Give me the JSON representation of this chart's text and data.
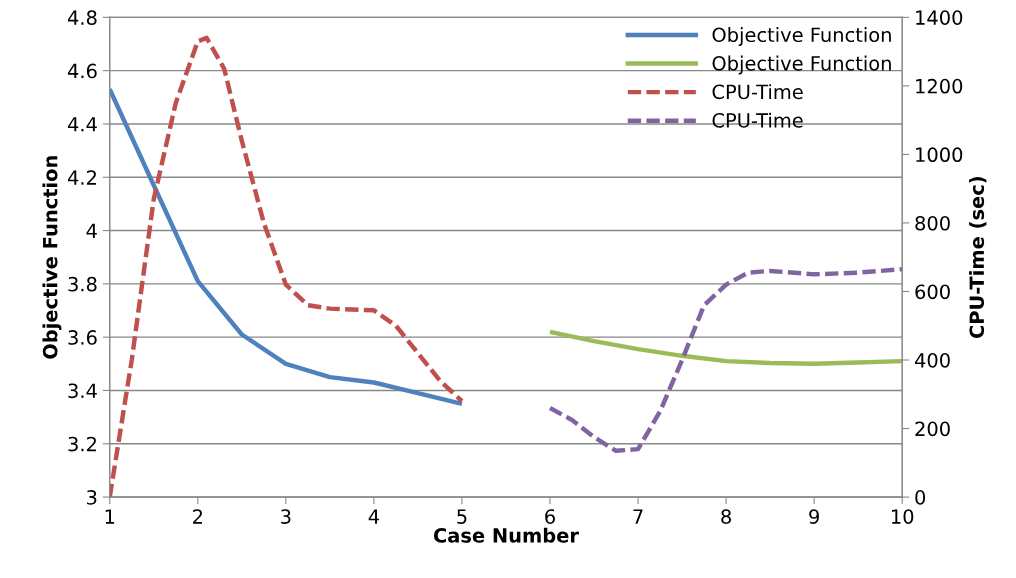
{
  "chart_data": {
    "type": "line",
    "xlabel": "Case Number",
    "ylabel": "Objective Function",
    "y2label": "CPU-Time (sec)",
    "xlim": [
      1,
      10
    ],
    "xticks": [
      1,
      2,
      3,
      4,
      5,
      6,
      7,
      8,
      9,
      10
    ],
    "ylim": [
      3,
      4.8
    ],
    "yticks": [
      3,
      3.2,
      3.4,
      3.6,
      3.8,
      4,
      4.2,
      4.4,
      4.6,
      4.8
    ],
    "y2lim": [
      0,
      1400
    ],
    "y2ticks": [
      0,
      200,
      400,
      600,
      800,
      1000,
      1200,
      1400
    ],
    "grid": "y",
    "legend": "top right",
    "marker": "none",
    "series": [
      {
        "name": "Objective Function",
        "color": "#4f81bd",
        "x": [
          1,
          1.5,
          2,
          2.5,
          3,
          3.5,
          4,
          4.5,
          5
        ],
        "values": [
          4.53,
          4.17,
          3.81,
          3.61,
          3.5,
          3.45,
          3.43,
          3.39,
          3.35
        ],
        "line_style": "solid"
      },
      {
        "name": "Objective Function",
        "color": "#9bbb59",
        "x": [
          6,
          6.5,
          7,
          7.5,
          8,
          8.5,
          9,
          9.5,
          10
        ],
        "values": [
          3.62,
          3.585,
          3.555,
          3.53,
          3.51,
          3.503,
          3.5,
          3.505,
          3.51
        ],
        "line_style": "solid"
      },
      {
        "name": "CPU-Time",
        "color": "#c0504d",
        "x": [
          1,
          1.25,
          1.5,
          1.75,
          2,
          2.1,
          2.3,
          2.5,
          2.75,
          3,
          3.25,
          3.5,
          4,
          4.25,
          4.5,
          4.75,
          5
        ],
        "values": [
          0,
          400,
          870,
          1150,
          1330,
          1340,
          1250,
          1040,
          800,
          620,
          560,
          550,
          545,
          500,
          420,
          340,
          280
        ],
        "line_style": "dashed",
        "axis": "y2"
      },
      {
        "name": "CPU-Time",
        "color": "#8064a2",
        "x": [
          6,
          6.25,
          6.5,
          6.75,
          7,
          7.25,
          7.5,
          7.75,
          8,
          8.25,
          8.5,
          9,
          9.5,
          10
        ],
        "values": [
          260,
          225,
          175,
          135,
          140,
          250,
          400,
          560,
          620,
          655,
          660,
          650,
          655,
          665
        ],
        "line_style": "dashed",
        "axis": "y2"
      }
    ]
  }
}
